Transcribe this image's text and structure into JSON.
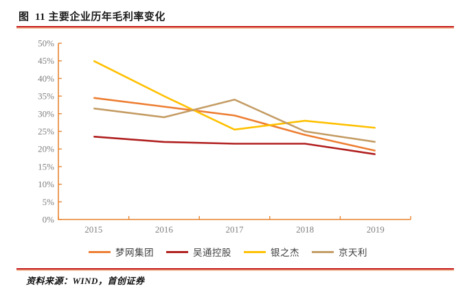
{
  "header": {
    "title": "图  11 主要企业历年毛利率变化"
  },
  "footer": {
    "source": "资料来源：WIND，首创证券"
  },
  "chart_data": {
    "type": "line",
    "title": "图 11 主要企业历年毛利率变化",
    "categories": [
      "2015",
      "2016",
      "2017",
      "2018",
      "2019"
    ],
    "series": [
      {
        "name": "梦网集团",
        "color": "#ED7D31",
        "values": [
          34.5,
          32,
          29.5,
          24,
          19.5
        ]
      },
      {
        "name": "吴通控股",
        "color": "#B01E1E",
        "values": [
          23.5,
          22,
          21.5,
          21.5,
          18.5
        ]
      },
      {
        "name": "银之杰",
        "color": "#FFC000",
        "values": [
          45,
          35,
          25.5,
          28,
          26
        ]
      },
      {
        "name": "京天利",
        "color": "#C49C64",
        "values": [
          31.5,
          29,
          34,
          25,
          22
        ]
      }
    ],
    "xlabel": "",
    "ylabel": "",
    "ylim": [
      0,
      50
    ],
    "ytick_step": 5,
    "ytick_labels": [
      "0%",
      "5%",
      "10%",
      "15%",
      "20%",
      "25%",
      "30%",
      "35%",
      "40%",
      "45%",
      "50%"
    ],
    "grid": false,
    "legend_position": "bottom",
    "axis_color": "#E8832E",
    "tick_label_color": "#7f7f7f"
  }
}
